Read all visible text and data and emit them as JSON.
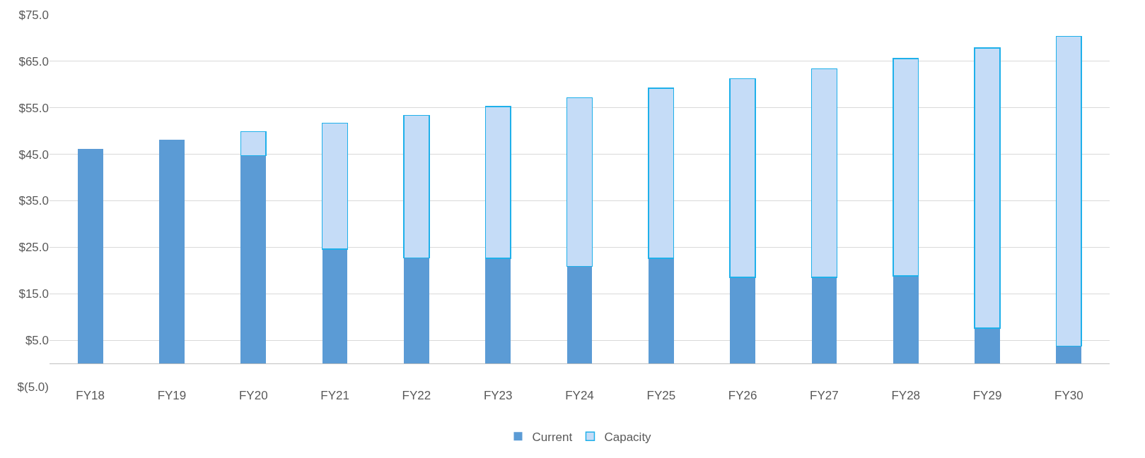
{
  "chart_data": {
    "type": "bar",
    "stacked": true,
    "categories": [
      "FY18",
      "FY19",
      "FY20",
      "FY21",
      "FY22",
      "FY23",
      "FY24",
      "FY25",
      "FY26",
      "FY27",
      "FY28",
      "FY29",
      "FY30"
    ],
    "series": [
      {
        "name": "Current",
        "color": "#5b9bd5",
        "values": [
          46.1,
          48.2,
          44.7,
          24.6,
          22.7,
          22.6,
          20.9,
          22.6,
          18.5,
          18.5,
          18.8,
          7.6,
          3.7
        ]
      },
      {
        "name": "Capacity",
        "color": "#c5dcf7",
        "values": [
          null,
          null,
          5.2,
          27.1,
          30.7,
          32.7,
          36.3,
          36.6,
          42.8,
          44.9,
          46.8,
          60.3,
          66.7
        ]
      }
    ],
    "ylim": [
      -5,
      75
    ],
    "yticks": [
      {
        "value": -5,
        "label": "$(5.0)"
      },
      {
        "value": 5,
        "label": "$5.0"
      },
      {
        "value": 15,
        "label": "$15.0"
      },
      {
        "value": 25,
        "label": "$25.0"
      },
      {
        "value": 35,
        "label": "$35.0"
      },
      {
        "value": 45,
        "label": "$45.0"
      },
      {
        "value": 55,
        "label": "$55.0"
      },
      {
        "value": 65,
        "label": "$65.0"
      },
      {
        "value": 75,
        "label": "$75.0"
      }
    ],
    "grid": "y",
    "legend": "bottom"
  }
}
